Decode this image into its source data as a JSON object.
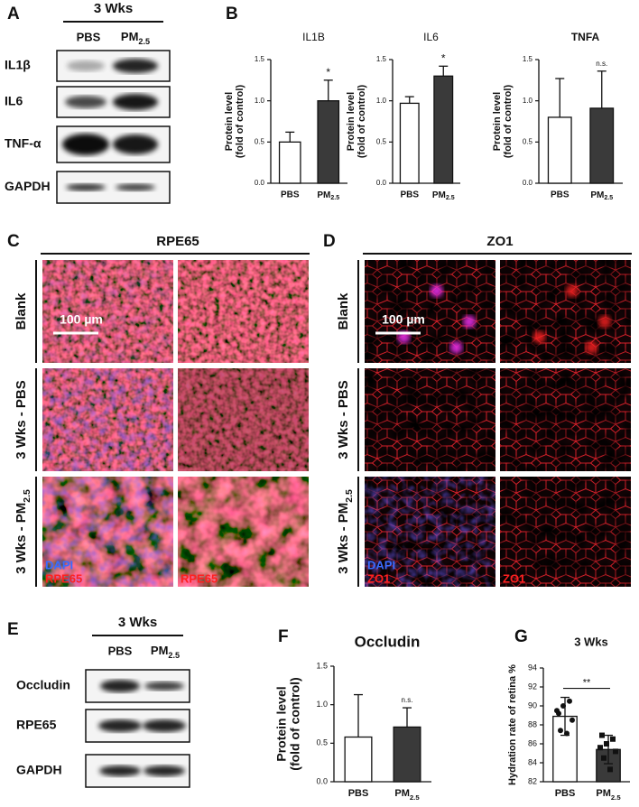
{
  "panel_A": {
    "letter": "A",
    "header": "3 Wks",
    "lanes": [
      "PBS",
      "PM"
    ],
    "lane_subscripts": {
      "1": "2.5"
    },
    "rows": [
      "IL1β",
      "IL6",
      "TNF-α",
      "GAPDH"
    ]
  },
  "panel_B": {
    "letter": "B"
  },
  "panel_C": {
    "letter": "C",
    "title": "RPE65",
    "rows": [
      "Blank",
      "3 Wks - PBS",
      "3 Wks - PM"
    ],
    "row_subscripts": {
      "2": "2.5"
    },
    "scale_bar": "100 µm",
    "stain_labels": [
      "DAPI",
      "RPE65",
      "RPE65"
    ]
  },
  "panel_D": {
    "letter": "D",
    "title": "ZO1",
    "rows": [
      "Blank",
      "3 Wks - PBS",
      "3 Wks - PM"
    ],
    "row_subscripts": {
      "2": "2.5"
    },
    "scale_bar": "100 µm",
    "stain_labels": [
      "DAPI",
      "ZO1",
      "ZO1"
    ]
  },
  "panel_E": {
    "letter": "E",
    "header": "3 Wks",
    "lanes": [
      "PBS",
      "PM"
    ],
    "lane_subscripts": {
      "1": "2.5"
    },
    "rows": [
      "Occludin",
      "RPE65",
      "GAPDH"
    ]
  },
  "panel_F": {
    "letter": "F"
  },
  "panel_G": {
    "letter": "G"
  },
  "chart_data": [
    {
      "type": "bar",
      "title": "IL1B",
      "y_label": [
        "Protein level",
        "(fold of control)"
      ],
      "categories": [
        "PBS",
        "PM"
      ],
      "category_subscripts": {
        "1": "2.5"
      },
      "values": [
        0.5,
        1.0
      ],
      "errors": [
        0.12,
        0.25
      ],
      "error_direction": "up",
      "colors": [
        "#ffffff",
        "#3a3a3a"
      ],
      "annotation": "*",
      "ylim": [
        0,
        1.5
      ],
      "yticks": [
        {
          "value": 0,
          "label": "0.0"
        },
        0.5,
        {
          "value": 1,
          "label": "1.0"
        },
        1.5
      ]
    },
    {
      "type": "bar",
      "title": "IL6",
      "y_label": [
        "Protein level",
        "(fold of control)"
      ],
      "categories": [
        "PBS",
        "PM"
      ],
      "category_subscripts": {
        "1": "2.5"
      },
      "values": [
        0.97,
        1.3
      ],
      "errors": [
        0.08,
        0.12
      ],
      "error_direction": "up",
      "colors": [
        "#ffffff",
        "#3a3a3a"
      ],
      "annotation": "*",
      "ylim": [
        0,
        1.5
      ],
      "yticks": [
        {
          "value": 0,
          "label": "0.0"
        },
        0.5,
        {
          "value": 1,
          "label": "1.0"
        },
        1.5
      ]
    },
    {
      "type": "bar",
      "title": "TNFA",
      "y_label": [
        "Protein level",
        "(fold of control)"
      ],
      "categories": [
        "PBS",
        "PM"
      ],
      "category_subscripts": {
        "1": "2.5"
      },
      "values": [
        0.8,
        0.91
      ],
      "errors": [
        0.47,
        0.45
      ],
      "error_direction": "up",
      "colors": [
        "#ffffff",
        "#3a3a3a"
      ],
      "annotation": "n.s.",
      "ylim": [
        0,
        1.5
      ],
      "yticks": [
        {
          "value": 0,
          "label": "0.0"
        },
        0.5,
        {
          "value": 1,
          "label": "1.0"
        },
        1.5
      ]
    },
    {
      "type": "bar",
      "title": "Occludin",
      "y_label": [
        "Protein level",
        "(fold of control)"
      ],
      "categories": [
        "PBS",
        "PM"
      ],
      "category_subscripts": {
        "1": "2.5"
      },
      "values": [
        0.58,
        0.71
      ],
      "errors": [
        0.55,
        0.25
      ],
      "error_direction": "up",
      "colors": [
        "#ffffff",
        "#3a3a3a"
      ],
      "annotation": "n.s.",
      "ylim": [
        0,
        1.5
      ],
      "yticks": [
        {
          "value": 0,
          "label": "0.0"
        },
        0.5,
        {
          "value": 1,
          "label": "1.0"
        },
        1.5
      ]
    },
    {
      "type": "bar",
      "title": "3 Wks",
      "y_label": [
        "Hydration rate of retina %"
      ],
      "categories": [
        "PBS",
        "PM"
      ],
      "category_subscripts": {
        "1": "2.5"
      },
      "values": [
        88.9,
        85.4
      ],
      "errors": [
        2.0,
        1.5
      ],
      "error_direction": "both",
      "colors": [
        "#ffffff",
        "#3a3a3a"
      ],
      "annotation": "**",
      "bracket": true,
      "points": [
        [
          89.2,
          90.5,
          90.0,
          88.5,
          87.4,
          87.1,
          89.5
        ],
        [
          86.9,
          86.5,
          86.0,
          85.2,
          84.5,
          83.3,
          85.6
        ]
      ],
      "ylim": [
        82,
        94
      ],
      "yticks": [
        82,
        84,
        86,
        88,
        90,
        92,
        94
      ]
    }
  ]
}
